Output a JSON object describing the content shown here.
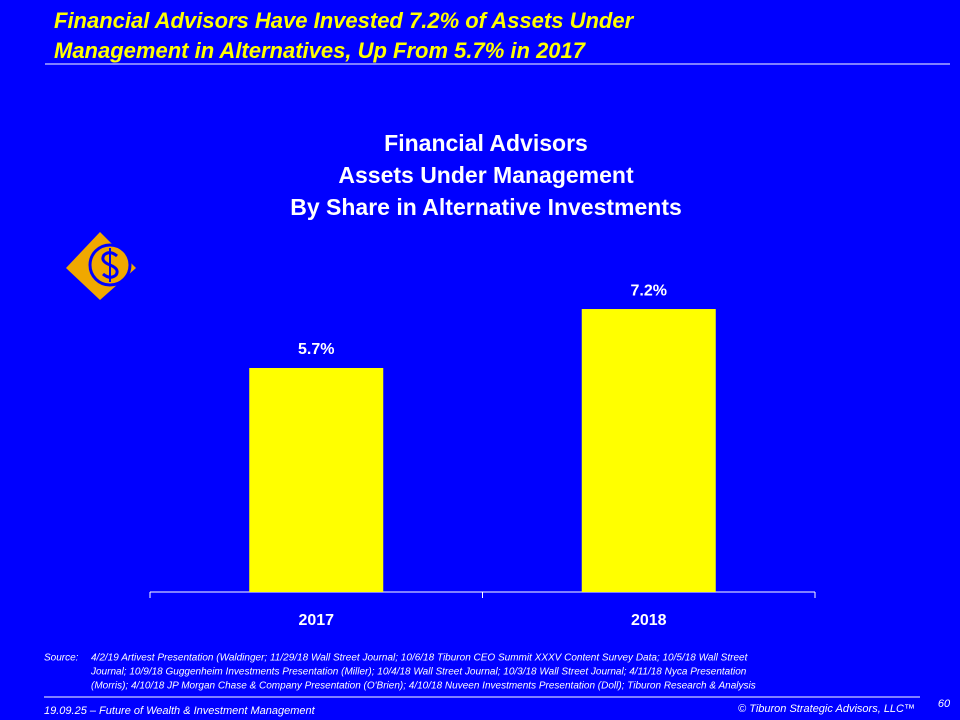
{
  "slide": {
    "title": [
      "Financial Advisors Have Invested 7.2% of Assets Under",
      "Management in Alternatives, Up From 5.7% in 2017"
    ],
    "source_label": "Source:",
    "source": [
      "4/2/19 Artivest Presentation (Waldinger; 11/29/18 Wall Street Journal; 10/6/18 Tiburon CEO Summit XXXV Content Survey Data; 10/5/18 Wall Street",
      "Journal; 10/9/18 Guggenheim Investments Presentation (Miller); 10/4/18 Wall Street Journal; 10/3/18 Wall Street Journal; 4/11/18 Nyca Presentation",
      "(Morris); 4/10/18 JP Morgan Chase & Company Presentation (O'Brien); 4/10/18 Nuveen Investments Presentation (Doll); Tiburon Research & Analysis"
    ],
    "footer_left": "19.09.25 – Future of Wealth & Investment Management",
    "footer_right": "© Tiburon Strategic Advisors, LLC™",
    "page_number": "60"
  },
  "chart_data": {
    "type": "bar",
    "title": [
      "Financial Advisors",
      "Assets Under Management",
      "By Share in Alternative Investments"
    ],
    "categories": [
      "2017",
      "2018"
    ],
    "values": [
      5.7,
      7.2
    ],
    "value_labels": [
      "5.7%",
      "7.2%"
    ],
    "color": "#ffff00"
  }
}
